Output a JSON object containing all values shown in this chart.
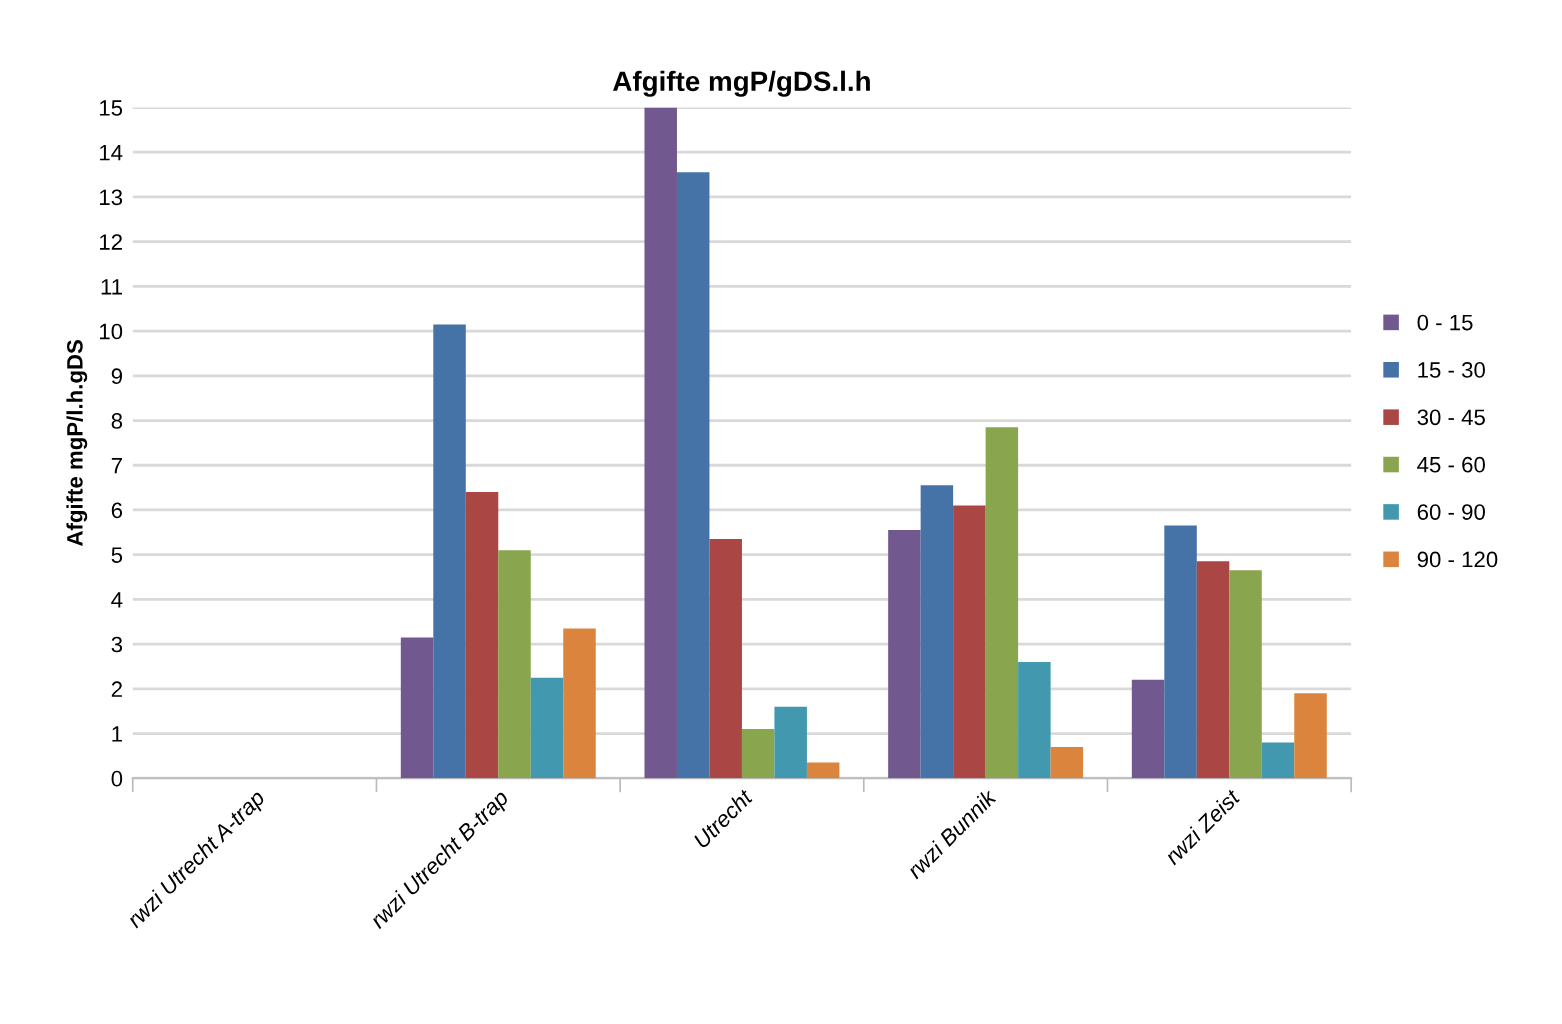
{
  "chart_data": {
    "type": "bar",
    "title": "Afgifte mgP/gDS.l.h",
    "ylabel": "Afgifte mgP/l.h.gDS",
    "categories": [
      "rwzi Utrecht A-trap",
      "rwzi Utrecht B-trap",
      "Utrecht",
      "rwzi Bunnik",
      "rwzi Zeist"
    ],
    "series": [
      {
        "name": "0 - 15",
        "color": "#71588f",
        "values": [
          null,
          3.15,
          15.0,
          5.55,
          2.2
        ]
      },
      {
        "name": "15 - 30",
        "color": "#4572a7",
        "values": [
          null,
          10.15,
          13.55,
          6.55,
          5.65
        ]
      },
      {
        "name": "30 - 45",
        "color": "#aa4643",
        "values": [
          null,
          6.4,
          5.35,
          6.1,
          4.85
        ]
      },
      {
        "name": "45 - 60",
        "color": "#89a54e",
        "values": [
          null,
          5.1,
          1.1,
          7.85,
          4.65
        ]
      },
      {
        "name": "60 - 90",
        "color": "#4198af",
        "values": [
          null,
          2.25,
          1.6,
          2.6,
          0.8
        ]
      },
      {
        "name": "90 - 120",
        "color": "#db843d",
        "values": [
          null,
          3.35,
          0.35,
          0.7,
          1.9
        ]
      }
    ],
    "ylim": [
      0,
      15
    ],
    "yticks": [
      0,
      1,
      2,
      3,
      4,
      5,
      6,
      7,
      8,
      9,
      10,
      11,
      12,
      13,
      14,
      15
    ],
    "grid": "y",
    "legend": "right"
  }
}
